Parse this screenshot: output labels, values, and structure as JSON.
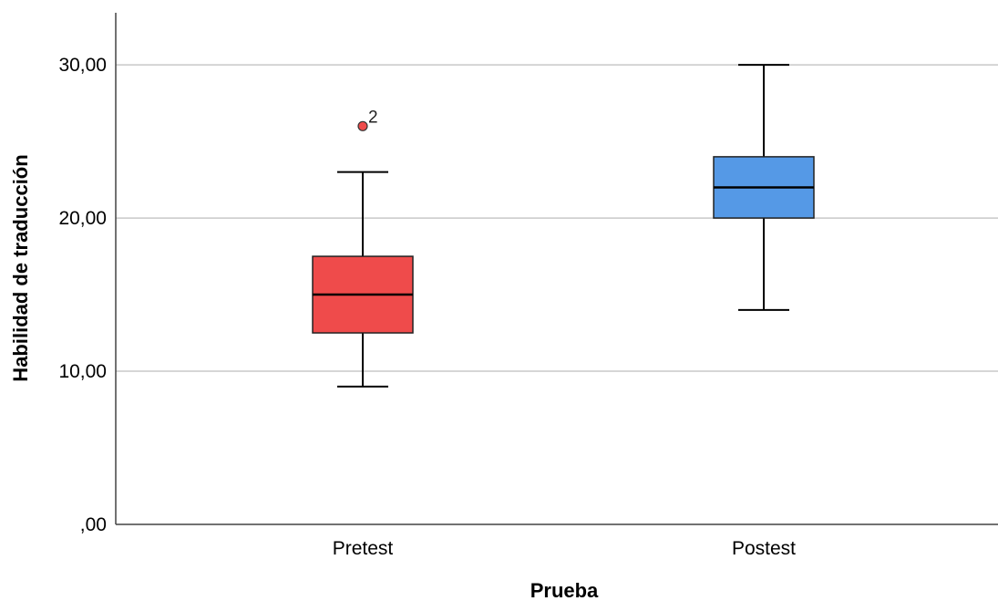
{
  "chart_data": {
    "type": "boxplot",
    "xlabel": "Prueba",
    "ylabel": "Habilidad de traducción",
    "ylim": [
      0,
      33.4
    ],
    "yticks": [
      0,
      10,
      20,
      30
    ],
    "ytick_labels": [
      ",00",
      "10,00",
      "20,00",
      "30,00"
    ],
    "grid": true,
    "categories": [
      "Pretest",
      "Postest"
    ],
    "boxes": [
      {
        "category": "Pretest",
        "min": 9,
        "q1": 12.5,
        "median": 15,
        "q3": 17.5,
        "max": 23,
        "color": "#ef4b4b",
        "outliers": [
          {
            "value": 26,
            "label": "2"
          }
        ]
      },
      {
        "category": "Postest",
        "min": 14,
        "q1": 20,
        "median": 22,
        "q3": 24,
        "max": 30,
        "color": "#5599e6",
        "outliers": []
      }
    ]
  }
}
